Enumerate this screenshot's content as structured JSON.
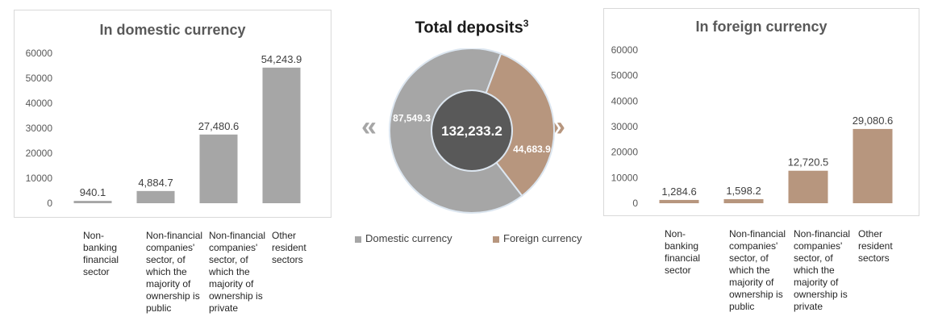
{
  "chart_data": [
    {
      "type": "bar",
      "title": "In domestic currency",
      "categories": [
        "Non-banking financial sector",
        "Non-financial companies' sector, of which the majority of ownership is public",
        "Non-financial companies' sector, of which the majority of ownership is private",
        "Other resident sectors"
      ],
      "category_labels": [
        [
          "Non-",
          "banking",
          "financial",
          "sector"
        ],
        [
          "Non-financial",
          "companies'",
          "sector, of",
          "which the",
          "majority of",
          "ownership is",
          "public"
        ],
        [
          "Non-financial",
          "companies'",
          "sector, of",
          "which the",
          "majority of",
          "ownership is",
          "private"
        ],
        [
          "Other",
          "resident",
          "sectors"
        ]
      ],
      "values": [
        940.1,
        4884.7,
        27480.6,
        54243.9
      ],
      "value_labels": [
        "940.1",
        "4,884.7",
        "27,480.6",
        "54,243.9"
      ],
      "yticks": [
        "0",
        "10000",
        "20000",
        "30000",
        "40000",
        "50000",
        "60000"
      ],
      "ylim": [
        0,
        60000
      ],
      "color": "#a6a6a6"
    },
    {
      "type": "pie",
      "title": "Total deposits",
      "title_sup": "3",
      "center_label": "132,233.2",
      "labels": [
        "Domestic currency",
        "Foreign currency"
      ],
      "values": [
        87549.3,
        44683.9
      ],
      "value_labels": [
        "87,549.3",
        "44,683.9"
      ],
      "colors": [
        "#a6a6a6",
        "#b7967e"
      ]
    },
    {
      "type": "bar",
      "title": "In foreign currency",
      "categories": [
        "Non-banking financial sector",
        "Non-financial companies' sector, of which the majority of ownership is public",
        "Non-financial companies' sector, of which the majority of ownership is private",
        "Other resident sectors"
      ],
      "category_labels": [
        [
          "Non-",
          "banking",
          "financial",
          "sector"
        ],
        [
          "Non-financial",
          "companies'",
          "sector, of",
          "which the",
          "majority of",
          "ownership is",
          "public"
        ],
        [
          "Non-financial",
          "companies'",
          "sector, of",
          "which the",
          "majority of",
          "ownership is",
          "private"
        ],
        [
          "Other",
          "resident",
          "sectors"
        ]
      ],
      "values": [
        1284.6,
        1598.2,
        12720.5,
        29080.6
      ],
      "value_labels": [
        "1,284.6",
        "1,598.2",
        "12,720.5",
        "29,080.6"
      ],
      "yticks": [
        "0",
        "10000",
        "20000",
        "30000",
        "40000",
        "50000",
        "60000"
      ],
      "ylim": [
        0,
        60000
      ],
      "color": "#b7967e"
    }
  ],
  "legend": {
    "domestic": "Domestic currency",
    "foreign": "Foreign currency",
    "domestic_color": "#a6a6a6",
    "foreign_color": "#b7967e"
  },
  "arrows": {
    "left": "«",
    "right": "»",
    "left_color": "#a6a6a6",
    "right_color": "#b7967e"
  }
}
